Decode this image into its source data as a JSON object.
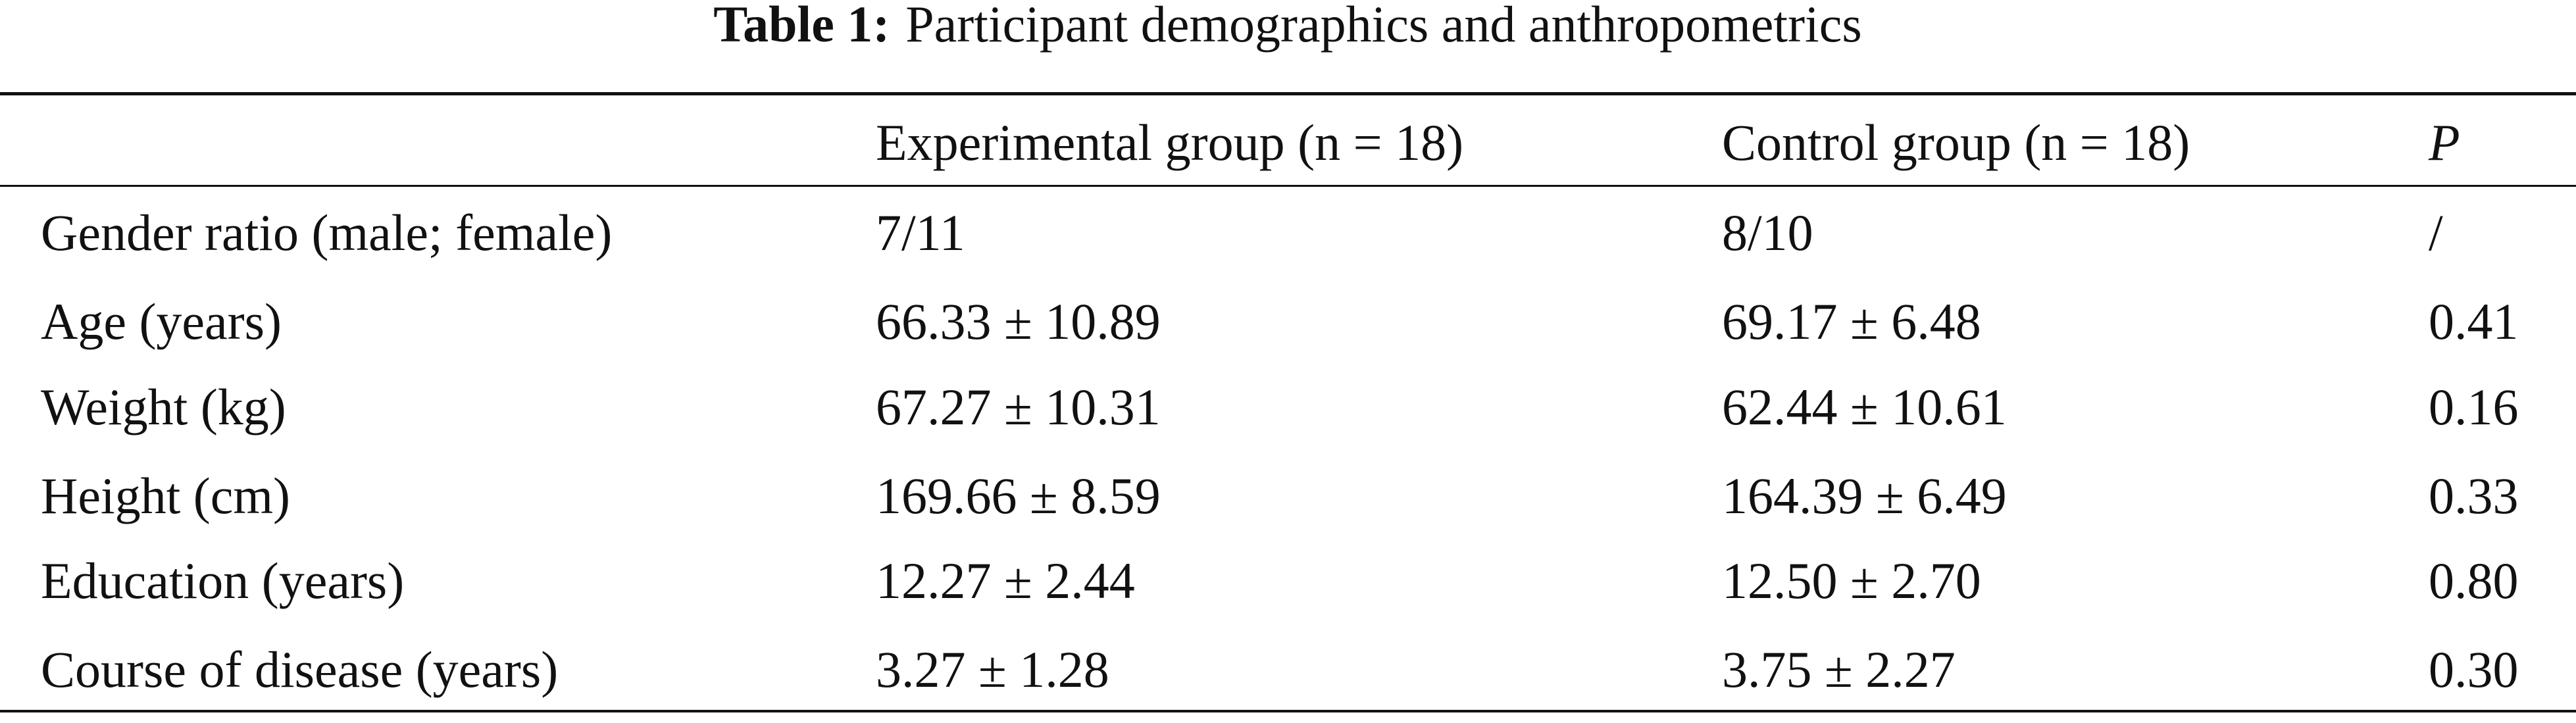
{
  "title": {
    "label": "Table 1:",
    "text": "Participant demographics and anthropometrics"
  },
  "table": {
    "columns": [
      "Experimental group (n = 18)",
      "Control group (n = 18)",
      "P"
    ],
    "rows": [
      [
        "Gender ratio (male; female)",
        "7/11",
        "8/10",
        "/"
      ],
      [
        "Age (years)",
        "66.33 ± 10.89",
        "69.17 ± 6.48",
        "0.41"
      ],
      [
        "Weight (kg)",
        "67.27 ± 10.31",
        "62.44 ± 10.61",
        "0.16"
      ],
      [
        "Height (cm)",
        "169.66 ± 8.59",
        "164.39 ± 6.49",
        "0.33"
      ],
      [
        "Education (years)",
        "12.27 ± 2.44",
        "12.50 ± 2.70",
        "0.80"
      ],
      [
        "Course of disease (years)",
        "3.27 ± 1.28",
        "3.75 ± 2.27",
        "0.30"
      ]
    ]
  }
}
